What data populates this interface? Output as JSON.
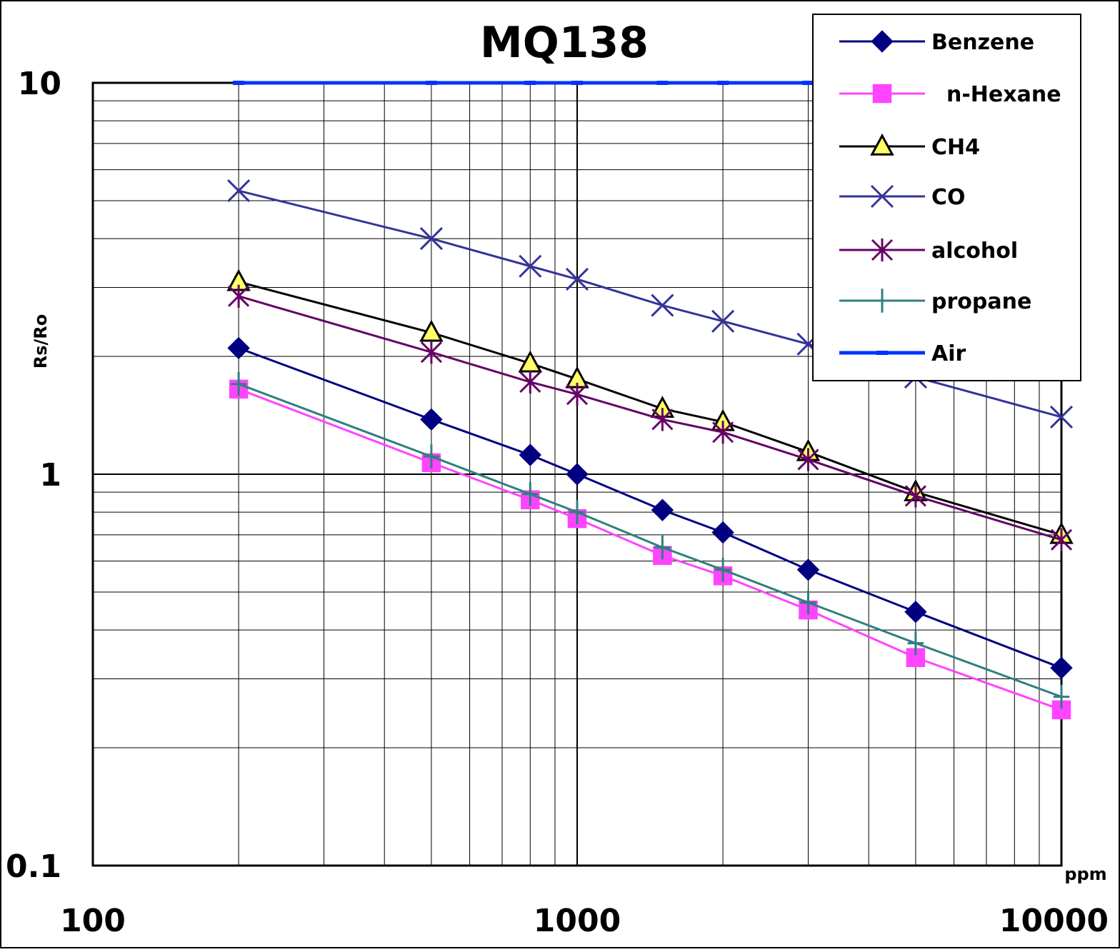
{
  "chart_data": {
    "type": "line",
    "title": "MQ138",
    "xlabel": "ppm",
    "ylabel": "Rs/Ro",
    "x_scale": "log",
    "y_scale": "log",
    "xlim": [
      100,
      10000
    ],
    "ylim": [
      0.1,
      10
    ],
    "x_tick_labels": [
      "100",
      "1000",
      "10000"
    ],
    "y_tick_labels": [
      "10",
      "1",
      "0.1"
    ],
    "grid": true,
    "legend_position": "top-right",
    "series": [
      {
        "name": "Benzene",
        "color": "#000080",
        "marker": "diamond",
        "x": [
          200,
          500,
          800,
          1000,
          1500,
          2000,
          3000,
          5000,
          10000
        ],
        "y": [
          2.1,
          1.38,
          1.12,
          1.0,
          0.81,
          0.71,
          0.57,
          0.445,
          0.32
        ]
      },
      {
        "name": "n-Hexane",
        "color": "#ff44ff",
        "marker": "square",
        "x": [
          200,
          500,
          800,
          1000,
          1500,
          2000,
          3000,
          5000,
          10000
        ],
        "y": [
          1.65,
          1.07,
          0.86,
          0.77,
          0.62,
          0.55,
          0.45,
          0.34,
          0.25
        ]
      },
      {
        "name": "CH4",
        "color": "#000000",
        "marker": "triangle",
        "x": [
          200,
          500,
          800,
          1000,
          1500,
          2000,
          3000,
          5000,
          10000
        ],
        "y": [
          3.1,
          2.3,
          1.92,
          1.75,
          1.47,
          1.36,
          1.14,
          0.9,
          0.7
        ]
      },
      {
        "name": "CO",
        "color": "#333399",
        "marker": "x",
        "x": [
          200,
          500,
          800,
          1000,
          1500,
          2000,
          3000,
          5000,
          10000
        ],
        "y": [
          5.3,
          4.0,
          3.4,
          3.15,
          2.7,
          2.46,
          2.15,
          1.77,
          1.4
        ]
      },
      {
        "name": "alcohol",
        "color": "#660066",
        "marker": "asterisk",
        "x": [
          200,
          500,
          800,
          1000,
          1500,
          2000,
          3000,
          5000,
          10000
        ],
        "y": [
          2.85,
          2.05,
          1.72,
          1.6,
          1.38,
          1.28,
          1.09,
          0.88,
          0.68
        ]
      },
      {
        "name": "propane",
        "color": "#2f7f7f",
        "marker": "plus",
        "x": [
          200,
          500,
          800,
          1000,
          1500,
          2000,
          3000,
          5000,
          10000
        ],
        "y": [
          1.7,
          1.11,
          0.89,
          0.8,
          0.65,
          0.57,
          0.47,
          0.37,
          0.27
        ]
      },
      {
        "name": "Air",
        "color": "#0033ff",
        "marker": "dash",
        "x": [
          200,
          500,
          800,
          1000,
          1500,
          2000,
          3000,
          5000,
          10000
        ],
        "y": [
          10,
          10,
          10,
          10,
          10,
          10,
          10,
          10,
          10
        ]
      }
    ]
  }
}
